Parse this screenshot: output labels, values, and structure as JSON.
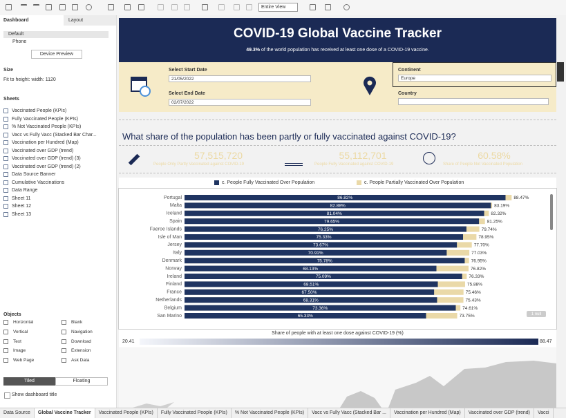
{
  "toolbar": {
    "view_mode": "Entire View"
  },
  "side_panel": {
    "tabs": [
      "Dashboard",
      "Layout"
    ],
    "devices": [
      "Default",
      "Phone"
    ],
    "device_preview": "Device Preview",
    "size_heading": "Size",
    "size_value": "Fit to height: width: 1120",
    "sheets_heading": "Sheets",
    "sheets": [
      "Vaccinated People (KPIs)",
      "Fully Vaccinated People (KPIs)",
      "% Not Vaccinated People (KPIs)",
      "Vacc vs Fully Vacc (Stacked Bar Char...",
      "Vaccination per Hundred (Map)",
      "Vaccinated over GDP (trend)",
      "Vaccinated over GDP (trend) (3)",
      "Vaccinated over GDP (trend) (2)",
      "Data Source Banner",
      "Cumulative Vaccinations",
      "Data Range",
      "Sheet 11",
      "Sheet 12",
      "Sheet 13"
    ],
    "objects_heading": "Objects",
    "objects": [
      "Horizontal",
      "Blank",
      "Vertical",
      "Navigation",
      "Text",
      "Download",
      "Image",
      "Extension",
      "Web Page",
      "Ask Data"
    ],
    "layout_modes": [
      "Tiled",
      "Floating"
    ],
    "show_title": "Show dashboard title"
  },
  "dashboard": {
    "title": "COVID-19 Global Vaccine Tracker",
    "banner_value": "49.3%",
    "banner_text": "of the world population has received at least one dose of a COVID-19 vaccine.",
    "filters": {
      "start_label": "Select Start Date",
      "start_value": "21/05/2022",
      "end_label": "Select End Date",
      "end_value": "02/07/2022",
      "continent_label": "Continent",
      "continent_value": "Europe",
      "country_label": "Country"
    },
    "question": "What share of the population has been partly or fully vaccinated against COVID-19?",
    "kpis": [
      {
        "value": "57,515,720",
        "label": "People Only Partly Vaccinated against COVID-19"
      },
      {
        "value": "55,112,701",
        "label": "People Fully Vaccinated against COVID-19"
      },
      {
        "value": "60.58%",
        "label": "Share of People Not Vaccinated Population"
      }
    ],
    "null_badge": "1 null",
    "map_legend": {
      "title": "Share of people with at least one dose against COVID-19 (%)",
      "min": "20.41",
      "max": "88.47"
    }
  },
  "chart_data": {
    "type": "bar",
    "orientation": "horizontal",
    "overlap": true,
    "categories": [
      "Portugal",
      "Malta",
      "Iceland",
      "Spain",
      "Faeroe Islands",
      "Isle of Man",
      "Jersey",
      "Italy",
      "Denmark",
      "Norway",
      "Ireland",
      "Finland",
      "France",
      "Netherlands",
      "Belgium",
      "San Marino"
    ],
    "xlim": [
      0,
      100
    ],
    "series": [
      {
        "name": "c. People Fully Vaccinated Over Population",
        "color": "#1f3461",
        "values": [
          86.82,
          82.88,
          81.04,
          79.65,
          76.25,
          75.33,
          73.67,
          70.91,
          75.78,
          68.13,
          75.09,
          68.51,
          67.5,
          68.31,
          73.36,
          65.33
        ],
        "value_labels": [
          "86.82%",
          "82.88%",
          "81.04%",
          "79.65%",
          "76.25%",
          "75.33%",
          "73.67%",
          "70.91%",
          "75.78%",
          "68.13%",
          "75.09%",
          "68.51%",
          "67.50%",
          "68.31%",
          "73.36%",
          "65.33%"
        ]
      },
      {
        "name": "c. People Partially Vaccinated Over Population",
        "color": "#ead9a8",
        "values": [
          88.47,
          83.19,
          82.32,
          81.25,
          79.74,
          78.95,
          77.7,
          77.03,
          76.95,
          76.82,
          76.33,
          75.88,
          75.46,
          75.43,
          74.61,
          73.75
        ],
        "value_labels": [
          "88.47%",
          "83.19%",
          "82.32%",
          "81.25%",
          "79.74%",
          "78.95%",
          "77.70%",
          "77.03%",
          "76.95%",
          "76.82%",
          "76.33%",
          "75.88%",
          "75.46%",
          "75.43%",
          "74.61%",
          "73.75%"
        ]
      }
    ]
  },
  "tabs": [
    "Data Source",
    "Global Vaccine Tracker",
    "Vaccinated People (KPIs)",
    "Fully Vaccinated People (KPIs)",
    "% Not Vaccinated People (KPIs)",
    "Vacc vs Fully Vacc (Stacked Bar ...",
    "Vaccination per Hundred (Map)",
    "Vaccinated over GDP (trend)",
    "Vacci"
  ]
}
